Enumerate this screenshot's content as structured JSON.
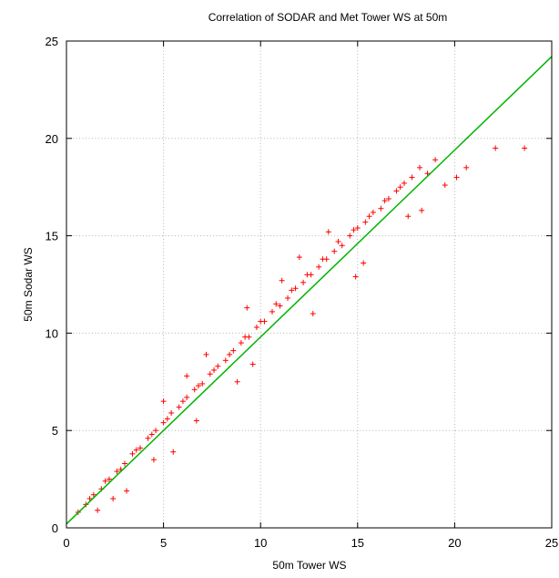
{
  "chart_data": {
    "type": "scatter",
    "title": "Correlation of SODAR and Met Tower WS at 50m",
    "xlabel": "50m Tower WS",
    "ylabel": "50m Sodar WS",
    "xlim": [
      0,
      25
    ],
    "ylim": [
      0,
      25
    ],
    "xticks": [
      "0",
      "5",
      "10",
      "15",
      "20",
      "25"
    ],
    "yticks": [
      "0",
      "5",
      "10",
      "15",
      "20",
      "25"
    ],
    "grid": true,
    "legend": "none",
    "marker_color": "#ff0000",
    "line_color": "#00b400",
    "series": [
      {
        "kind": "scatter",
        "marker": "plus",
        "x": [
          0.6,
          1.0,
          1.4,
          1.8,
          2.2,
          2.6,
          3.0,
          3.4,
          3.8,
          4.2,
          4.6,
          5.0,
          5.4,
          5.8,
          6.2,
          6.6,
          7.0,
          7.4,
          7.8,
          8.2,
          8.6,
          9.0,
          9.4,
          9.8,
          10.2,
          10.6,
          11.0,
          11.4,
          11.8,
          12.2,
          12.6,
          13.0,
          13.4,
          13.8,
          14.2,
          14.6,
          15.0,
          15.4,
          15.8,
          16.2,
          16.6,
          17.0,
          17.4,
          17.8,
          18.2,
          18.6,
          19.0,
          19.5,
          20.1,
          20.6,
          22.1,
          23.6,
          1.2,
          2.0,
          2.8,
          3.6,
          4.4,
          5.2,
          6.0,
          6.8,
          7.6,
          8.4,
          9.2,
          10.0,
          10.8,
          11.6,
          12.4,
          13.2,
          14.0,
          14.8,
          15.6,
          16.4,
          17.2,
          4.5,
          5.5,
          6.7,
          5.0,
          6.2,
          7.2,
          8.8,
          9.3,
          12.7,
          15.3,
          17.6,
          18.3,
          14.9,
          2.4,
          1.6,
          3.1,
          12.0,
          13.5,
          9.6,
          11.1
        ],
        "y": [
          0.8,
          1.2,
          1.7,
          2.0,
          2.5,
          2.9,
          3.3,
          3.8,
          4.1,
          4.6,
          5.0,
          5.4,
          5.9,
          6.2,
          6.7,
          7.1,
          7.4,
          7.9,
          8.3,
          8.6,
          9.1,
          9.5,
          9.8,
          10.3,
          10.6,
          11.1,
          11.4,
          11.8,
          12.3,
          12.6,
          13.0,
          13.4,
          13.8,
          14.2,
          14.5,
          15.0,
          15.4,
          15.7,
          16.2,
          16.4,
          16.9,
          17.3,
          17.7,
          18.0,
          18.5,
          18.2,
          18.9,
          17.6,
          18.0,
          18.5,
          19.5,
          19.5,
          1.5,
          2.4,
          3.0,
          4.0,
          4.8,
          5.6,
          6.5,
          7.3,
          8.1,
          8.9,
          9.8,
          10.6,
          11.5,
          12.2,
          13.0,
          13.8,
          14.7,
          15.3,
          16.0,
          16.8,
          17.5,
          3.5,
          3.9,
          5.5,
          6.5,
          7.8,
          8.9,
          7.5,
          11.3,
          11.0,
          13.6,
          16.0,
          16.3,
          12.9,
          1.5,
          0.9,
          1.9,
          13.9,
          15.2,
          8.4,
          12.7
        ]
      },
      {
        "kind": "line",
        "x": [
          0,
          25
        ],
        "y": [
          0.2,
          24.2
        ]
      }
    ]
  }
}
